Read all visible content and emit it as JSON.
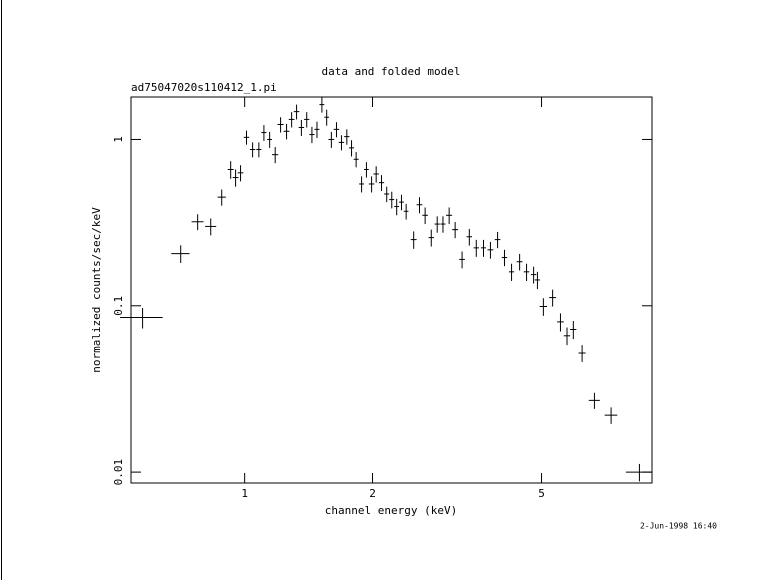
{
  "chart_data": {
    "type": "errorbar-scatter",
    "title": "data and folded model",
    "subtitle": "ad75047020s110412_1.pi",
    "xlabel": "channel energy (keV)",
    "ylabel": "normalized counts/sec/keV",
    "timestamp": "2-Jun-1998 16:40",
    "xscale": "log",
    "yscale": "log",
    "color": "#000000",
    "xlim": [
      0.54,
      9.1
    ],
    "ylim": [
      0.0086,
      1.8
    ],
    "xticks": [
      1,
      2,
      5
    ],
    "yticks": [
      0.01,
      0.1,
      1
    ],
    "x": [
      0.575,
      0.707,
      0.775,
      0.832,
      0.883,
      0.927,
      0.952,
      0.978,
      1.01,
      1.044,
      1.08,
      1.11,
      1.145,
      1.18,
      1.215,
      1.255,
      1.29,
      1.325,
      1.36,
      1.4,
      1.44,
      1.48,
      1.52,
      1.56,
      1.6,
      1.645,
      1.69,
      1.74,
      1.785,
      1.83,
      1.885,
      1.935,
      1.99,
      2.04,
      2.1,
      2.16,
      2.22,
      2.28,
      2.34,
      2.4,
      2.5,
      2.58,
      2.66,
      2.75,
      2.84,
      2.93,
      3.03,
      3.13,
      3.25,
      3.38,
      3.51,
      3.65,
      3.79,
      3.94,
      4.09,
      4.25,
      4.44,
      4.61,
      4.79,
      4.89,
      5.05,
      5.31,
      5.54,
      5.74,
      5.94,
      6.23,
      6.66,
      7.29,
      8.5
    ],
    "xerr": [
      0.066,
      0.035,
      0.025,
      0.025,
      0.02,
      0.015,
      0.015,
      0.015,
      0.015,
      0.015,
      0.015,
      0.015,
      0.015,
      0.02,
      0.02,
      0.02,
      0.02,
      0.02,
      0.02,
      0.02,
      0.02,
      0.02,
      0.02,
      0.02,
      0.025,
      0.025,
      0.025,
      0.025,
      0.025,
      0.025,
      0.025,
      0.025,
      0.03,
      0.03,
      0.03,
      0.03,
      0.03,
      0.03,
      0.03,
      0.03,
      0.04,
      0.04,
      0.04,
      0.04,
      0.04,
      0.04,
      0.05,
      0.05,
      0.05,
      0.05,
      0.05,
      0.05,
      0.06,
      0.06,
      0.06,
      0.06,
      0.07,
      0.07,
      0.07,
      0.07,
      0.1,
      0.1,
      0.1,
      0.1,
      0.1,
      0.12,
      0.2,
      0.25,
      0.6
    ],
    "values": [
      0.085,
      0.206,
      0.32,
      0.3,
      0.45,
      0.66,
      0.59,
      0.63,
      1.03,
      0.87,
      0.87,
      1.1,
      1.0,
      0.81,
      1.23,
      1.12,
      1.32,
      1.47,
      1.18,
      1.32,
      1.07,
      1.15,
      1.62,
      1.36,
      1.0,
      1.15,
      0.96,
      1.04,
      0.89,
      0.76,
      0.54,
      0.66,
      0.54,
      0.62,
      0.55,
      0.47,
      0.435,
      0.395,
      0.42,
      0.37,
      0.25,
      0.405,
      0.35,
      0.257,
      0.31,
      0.31,
      0.35,
      0.287,
      0.19,
      0.26,
      0.223,
      0.223,
      0.217,
      0.25,
      0.195,
      0.16,
      0.184,
      0.16,
      0.154,
      0.143,
      0.099,
      0.112,
      0.08,
      0.066,
      0.072,
      0.052,
      0.027,
      0.022,
      0.01
    ],
    "yerr": [
      0.012,
      0.025,
      0.035,
      0.035,
      0.05,
      0.08,
      0.07,
      0.07,
      0.1,
      0.09,
      0.09,
      0.12,
      0.11,
      0.09,
      0.13,
      0.12,
      0.14,
      0.15,
      0.13,
      0.14,
      0.12,
      0.13,
      0.17,
      0.15,
      0.11,
      0.12,
      0.1,
      0.11,
      0.1,
      0.08,
      0.06,
      0.07,
      0.06,
      0.07,
      0.06,
      0.05,
      0.05,
      0.045,
      0.045,
      0.04,
      0.03,
      0.045,
      0.04,
      0.03,
      0.035,
      0.035,
      0.04,
      0.032,
      0.022,
      0.03,
      0.026,
      0.026,
      0.025,
      0.028,
      0.022,
      0.019,
      0.021,
      0.019,
      0.018,
      0.017,
      0.012,
      0.013,
      0.01,
      0.008,
      0.009,
      0.006,
      0.003,
      0.0025,
      0.0012
    ]
  }
}
